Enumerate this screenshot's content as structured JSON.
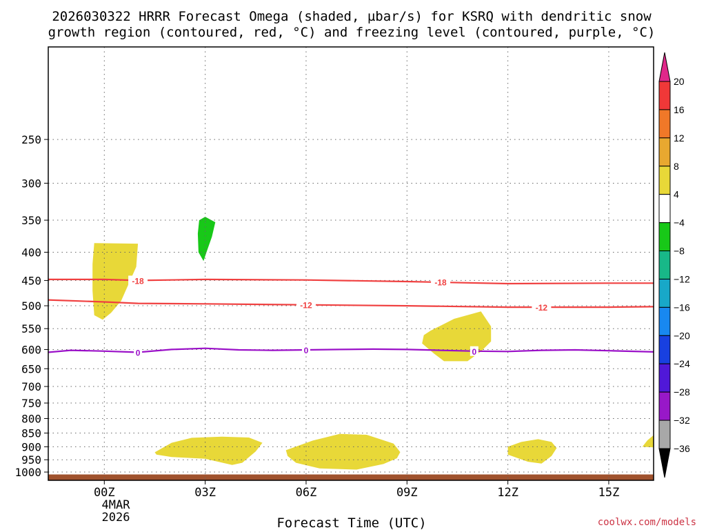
{
  "chart_data": {
    "type": "time-height",
    "title_line1": "2026030322 HRRR Forecast Omega (shaded, µbar/s) for KSRQ with dendritic snow",
    "title_line2": "growth region (contoured, red, °C) and freezing level (contoured, purple, °C)",
    "xlabel": "Forecast Time (UTC)",
    "credit": "coolwx.com/models",
    "date_label": [
      "4MAR",
      "2026"
    ],
    "x_range": [
      -1.6667,
      16.3333
    ],
    "x_ticks": [
      {
        "t": 0,
        "label": "00Z"
      },
      {
        "t": 3,
        "label": "03Z"
      },
      {
        "t": 6,
        "label": "06Z"
      },
      {
        "t": 9,
        "label": "09Z"
      },
      {
        "t": 12,
        "label": "12Z"
      },
      {
        "t": 15,
        "label": "15Z"
      }
    ],
    "y_scale": "log-pressure",
    "y_range": [
      1035,
      170
    ],
    "y_ticks": [
      250,
      300,
      350,
      400,
      450,
      500,
      550,
      600,
      650,
      700,
      750,
      800,
      850,
      900,
      950,
      1000
    ],
    "grid": true,
    "colorbar": {
      "labels": [
        20,
        16,
        12,
        8,
        4,
        -4,
        -8,
        -12,
        -16,
        -20,
        -24,
        -28,
        -32,
        -36
      ],
      "colors": [
        "#e0288a",
        "#f03838",
        "#f07828",
        "#e8a830",
        "#e8d838",
        "#ffffff",
        "#18c818",
        "#18b888",
        "#18a8c8",
        "#1888f0",
        "#1840e0",
        "#5018d8",
        "#9818c8",
        "#a8a8a8",
        "#000000"
      ]
    },
    "contours": [
      {
        "name": "-18",
        "color": "#f04040",
        "label": "-18",
        "points": [
          [
            -1.67,
            448
          ],
          [
            0,
            448
          ],
          [
            1,
            450
          ],
          [
            3,
            448
          ],
          [
            6,
            449
          ],
          [
            9,
            452
          ],
          [
            12,
            456
          ],
          [
            15,
            455
          ],
          [
            16.33,
            455
          ]
        ],
        "label_at": [
          [
            1,
            450
          ],
          [
            10,
            453
          ]
        ]
      },
      {
        "name": "-12",
        "color": "#f04040",
        "label": "-12",
        "points": [
          [
            -1.67,
            488
          ],
          [
            0,
            492
          ],
          [
            1,
            495
          ],
          [
            3,
            496
          ],
          [
            6,
            498
          ],
          [
            9,
            500
          ],
          [
            12,
            503
          ],
          [
            15,
            503
          ],
          [
            16.33,
            502
          ]
        ],
        "label_at": [
          [
            6,
            498
          ],
          [
            13,
            503
          ]
        ]
      },
      {
        "name": "0",
        "color": "#9a10c8",
        "label": "0",
        "points": [
          [
            -1.67,
            607
          ],
          [
            -1,
            602
          ],
          [
            0,
            604
          ],
          [
            1,
            607
          ],
          [
            2,
            600
          ],
          [
            3,
            597
          ],
          [
            4,
            601
          ],
          [
            5,
            602
          ],
          [
            6,
            601
          ],
          [
            7,
            600
          ],
          [
            8,
            599
          ],
          [
            9,
            600
          ],
          [
            10,
            602
          ],
          [
            11,
            604
          ],
          [
            12,
            605
          ],
          [
            13,
            602
          ],
          [
            14,
            601
          ],
          [
            15,
            603
          ],
          [
            16.33,
            606
          ]
        ],
        "label_at": [
          [
            1,
            607
          ],
          [
            6,
            601
          ],
          [
            11,
            604
          ]
        ]
      }
    ],
    "shaded_regions": [
      {
        "name": "omega-pos-1",
        "color": "#e8d838",
        "points": [
          [
            -0.3,
            385
          ],
          [
            1,
            386
          ],
          [
            0.95,
            425
          ],
          [
            0.7,
            460
          ],
          [
            0.5,
            490
          ],
          [
            0.2,
            515
          ],
          [
            -0.05,
            530
          ],
          [
            -0.3,
            520
          ],
          [
            -0.35,
            470
          ],
          [
            -0.35,
            420
          ]
        ]
      },
      {
        "name": "omega-neg-1",
        "color": "#18c818",
        "points": [
          [
            3.0,
            345
          ],
          [
            3.3,
            353
          ],
          [
            3.2,
            375
          ],
          [
            3.05,
            398
          ],
          [
            2.95,
            415
          ],
          [
            2.8,
            400
          ],
          [
            2.78,
            370
          ],
          [
            2.82,
            350
          ]
        ]
      },
      {
        "name": "omega-pos-2",
        "color": "#e8d838",
        "points": [
          [
            9.7,
            555
          ],
          [
            10.4,
            528
          ],
          [
            11.2,
            512
          ],
          [
            11.5,
            545
          ],
          [
            11.5,
            580
          ],
          [
            11.2,
            605
          ],
          [
            10.8,
            630
          ],
          [
            10.1,
            630
          ],
          [
            9.8,
            610
          ],
          [
            9.45,
            585
          ],
          [
            9.5,
            565
          ]
        ]
      },
      {
        "name": "omega-pos-3",
        "color": "#e8d838",
        "points": [
          [
            1.5,
            921
          ],
          [
            2.0,
            885
          ],
          [
            2.6,
            867
          ],
          [
            3.5,
            863
          ],
          [
            4.3,
            866
          ],
          [
            4.7,
            885
          ],
          [
            4.5,
            918
          ],
          [
            4.1,
            962
          ],
          [
            3.8,
            971
          ],
          [
            3.0,
            946
          ],
          [
            2.0,
            939
          ],
          [
            1.55,
            930
          ]
        ]
      },
      {
        "name": "omega-pos-4",
        "color": "#e8d838",
        "points": [
          [
            5.4,
            913
          ],
          [
            6.2,
            877
          ],
          [
            7.0,
            853
          ],
          [
            7.8,
            856
          ],
          [
            8.6,
            888
          ],
          [
            8.8,
            920
          ],
          [
            8.7,
            944
          ],
          [
            8.3,
            967
          ],
          [
            7.5,
            990
          ],
          [
            6.4,
            985
          ],
          [
            5.7,
            962
          ],
          [
            5.45,
            935
          ]
        ]
      },
      {
        "name": "omega-pos-5",
        "color": "#e8d838",
        "points": [
          [
            12.0,
            900
          ],
          [
            12.4,
            882
          ],
          [
            12.9,
            872
          ],
          [
            13.3,
            882
          ],
          [
            13.45,
            905
          ],
          [
            13.3,
            935
          ],
          [
            13.0,
            965
          ],
          [
            12.6,
            958
          ],
          [
            12.0,
            930
          ]
        ]
      },
      {
        "name": "omega-pos-6",
        "color": "#e8d838",
        "points": [
          [
            16.33,
            858
          ],
          [
            16.15,
            876
          ],
          [
            16.0,
            900
          ],
          [
            16.33,
            902
          ]
        ]
      }
    ],
    "ground": {
      "color": "#a0522d",
      "top_p": 1010
    }
  }
}
